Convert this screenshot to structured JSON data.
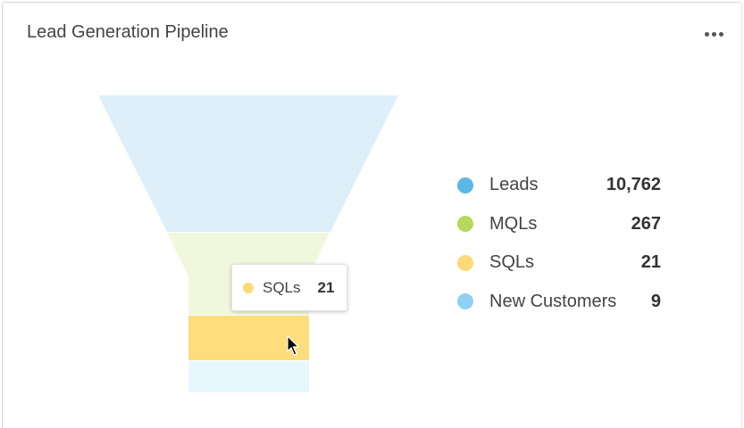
{
  "card": {
    "title": "Lead Generation Pipeline",
    "menu_icon": "more-horizontal-icon"
  },
  "chart_data": {
    "type": "funnel",
    "title": "Lead Generation Pipeline",
    "stages": [
      {
        "name": "Leads",
        "value": 10762,
        "display": "10,762",
        "color": "#5bb8e4",
        "fill": "#ddf0fa"
      },
      {
        "name": "MQLs",
        "value": 267,
        "display": "267",
        "color": "#b5d95a",
        "fill": "#f1f7dd"
      },
      {
        "name": "SQLs",
        "value": 21,
        "display": "21",
        "color": "#fdd97a",
        "fill": "#fedd7c"
      },
      {
        "name": "New Customers",
        "value": 9,
        "display": "9",
        "color": "#8fd1f5",
        "fill": "#e8f6fd"
      }
    ],
    "legend_position": "right",
    "highlighted_stage": "SQLs"
  },
  "tooltip": {
    "label": "SQLs",
    "value": "21",
    "color": "#fdd97a"
  },
  "cursor_icon": "arrow-cursor-icon"
}
